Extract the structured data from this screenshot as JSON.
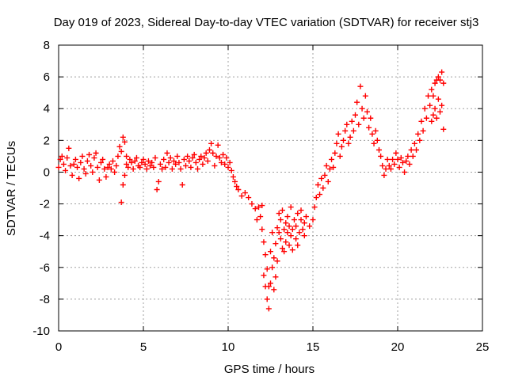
{
  "chart_data": {
    "type": "scatter",
    "title": "Day 019 of 2023, Sidereal Day-to-day VTEC variation (SDTVAR) for receiver stj3",
    "xlabel": "GPS time / hours",
    "ylabel": "SDTVAR / TECUs",
    "xlim": [
      0,
      25
    ],
    "ylim": [
      -10,
      8
    ],
    "xticks": [
      "0",
      "5",
      "10",
      "15",
      "20",
      "25"
    ],
    "yticks": [
      "-10",
      "-8",
      "-6",
      "-4",
      "-2",
      "0",
      "2",
      "4",
      "6",
      "8"
    ],
    "grid": true,
    "legend": "none",
    "marker": "plus",
    "color": "#ff0000",
    "series": [
      {
        "values": [
          [
            0.0,
            0.3
          ],
          [
            0.1,
            0.8
          ],
          [
            0.2,
            1.0
          ],
          [
            0.3,
            0.5
          ],
          [
            0.4,
            0.1
          ],
          [
            0.5,
            0.9
          ],
          [
            0.6,
            1.5
          ],
          [
            0.7,
            0.4
          ],
          [
            0.8,
            -0.2
          ],
          [
            0.9,
            0.5
          ],
          [
            1.0,
            0.8
          ],
          [
            1.1,
            0.3
          ],
          [
            1.2,
            -0.4
          ],
          [
            1.3,
            0.6
          ],
          [
            1.4,
            1.0
          ],
          [
            1.5,
            0.2
          ],
          [
            1.6,
            -0.1
          ],
          [
            1.7,
            0.7
          ],
          [
            1.8,
            1.1
          ],
          [
            1.9,
            0.4
          ],
          [
            2.0,
            0.0
          ],
          [
            2.1,
            0.9
          ],
          [
            2.2,
            1.2
          ],
          [
            2.3,
            0.3
          ],
          [
            2.4,
            -0.5
          ],
          [
            2.5,
            0.6
          ],
          [
            2.6,
            0.8
          ],
          [
            2.7,
            0.2
          ],
          [
            2.8,
            -0.3
          ],
          [
            2.9,
            0.3
          ],
          [
            3.0,
            0.5
          ],
          [
            3.1,
            0.2
          ],
          [
            3.2,
            0.7
          ],
          [
            3.3,
            0.0
          ],
          [
            3.4,
            0.4
          ],
          [
            3.5,
            1.0
          ],
          [
            3.6,
            1.6
          ],
          [
            3.7,
            -1.9
          ],
          [
            3.7,
            1.3
          ],
          [
            3.8,
            -0.8
          ],
          [
            3.8,
            2.2
          ],
          [
            3.9,
            -0.2
          ],
          [
            3.9,
            1.9
          ],
          [
            4.0,
            0.5
          ],
          [
            4.0,
            1.0
          ],
          [
            4.1,
            0.3
          ],
          [
            4.2,
            0.8
          ],
          [
            4.3,
            0.6
          ],
          [
            4.4,
            0.2
          ],
          [
            4.5,
            0.7
          ],
          [
            4.6,
            0.9
          ],
          [
            4.7,
            0.4
          ],
          [
            4.8,
            0.3
          ],
          [
            4.9,
            0.6
          ],
          [
            5.0,
            0.8
          ],
          [
            5.1,
            0.5
          ],
          [
            5.2,
            0.2
          ],
          [
            5.3,
            0.7
          ],
          [
            5.4,
            0.4
          ],
          [
            5.5,
            0.6
          ],
          [
            5.6,
            0.3
          ],
          [
            5.7,
            0.9
          ],
          [
            5.8,
            -1.1
          ],
          [
            5.9,
            -0.6
          ],
          [
            6.0,
            0.5
          ],
          [
            6.1,
            0.2
          ],
          [
            6.2,
            0.8
          ],
          [
            6.3,
            0.3
          ],
          [
            6.4,
            1.2
          ],
          [
            6.5,
            0.6
          ],
          [
            6.6,
            0.9
          ],
          [
            6.7,
            0.2
          ],
          [
            6.8,
            0.7
          ],
          [
            6.9,
            0.5
          ],
          [
            7.0,
            1.0
          ],
          [
            7.1,
            0.6
          ],
          [
            7.2,
            0.2
          ],
          [
            7.3,
            -0.8
          ],
          [
            7.4,
            0.8
          ],
          [
            7.5,
            0.4
          ],
          [
            7.6,
            1.0
          ],
          [
            7.7,
            0.7
          ],
          [
            7.8,
            0.3
          ],
          [
            7.9,
            0.9
          ],
          [
            8.0,
            1.1
          ],
          [
            8.1,
            0.6
          ],
          [
            8.2,
            0.2
          ],
          [
            8.3,
            0.8
          ],
          [
            8.4,
            1.0
          ],
          [
            8.5,
            0.5
          ],
          [
            8.6,
            0.9
          ],
          [
            8.7,
            1.2
          ],
          [
            8.8,
            0.7
          ],
          [
            8.9,
            1.4
          ],
          [
            9.0,
            1.8
          ],
          [
            9.1,
            1.2
          ],
          [
            9.2,
            0.4
          ],
          [
            9.3,
            1.0
          ],
          [
            9.4,
            1.7
          ],
          [
            9.5,
            0.9
          ],
          [
            9.6,
            0.6
          ],
          [
            9.7,
            1.1
          ],
          [
            9.8,
            0.5
          ],
          [
            9.9,
            0.9
          ],
          [
            10.0,
            0.3
          ],
          [
            10.1,
            0.6
          ],
          [
            10.2,
            0.1
          ],
          [
            10.3,
            -0.3
          ],
          [
            10.4,
            -0.6
          ],
          [
            10.5,
            -0.9
          ],
          [
            10.6,
            -1.1
          ],
          [
            10.8,
            -1.5
          ],
          [
            11.0,
            -1.3
          ],
          [
            11.2,
            -1.6
          ],
          [
            11.4,
            -2.0
          ],
          [
            11.6,
            -2.3
          ],
          [
            11.7,
            -3.0
          ],
          [
            11.8,
            -2.2
          ],
          [
            11.9,
            -2.8
          ],
          [
            12.0,
            -3.6
          ],
          [
            12.0,
            -2.1
          ],
          [
            12.1,
            -4.4
          ],
          [
            12.1,
            -6.5
          ],
          [
            12.2,
            -5.2
          ],
          [
            12.2,
            -7.2
          ],
          [
            12.3,
            -6.1
          ],
          [
            12.3,
            -8.0
          ],
          [
            12.4,
            -7.2
          ],
          [
            12.4,
            -8.6
          ],
          [
            12.5,
            -7.0
          ],
          [
            12.5,
            -5.0
          ],
          [
            12.6,
            -6.0
          ],
          [
            12.6,
            -3.8
          ],
          [
            12.7,
            -5.4
          ],
          [
            12.7,
            -7.4
          ],
          [
            12.8,
            -4.5
          ],
          [
            12.8,
            -6.6
          ],
          [
            12.9,
            -3.5
          ],
          [
            12.9,
            -5.6
          ],
          [
            13.0,
            -3.8
          ],
          [
            13.0,
            -2.6
          ],
          [
            13.1,
            -4.2
          ],
          [
            13.1,
            -3.0
          ],
          [
            13.2,
            -4.8
          ],
          [
            13.2,
            -2.4
          ],
          [
            13.3,
            -3.6
          ],
          [
            13.3,
            -5.0
          ],
          [
            13.4,
            -3.2
          ],
          [
            13.4,
            -4.4
          ],
          [
            13.5,
            -2.8
          ],
          [
            13.5,
            -3.8
          ],
          [
            13.6,
            -4.6
          ],
          [
            13.6,
            -3.4
          ],
          [
            13.7,
            -2.2
          ],
          [
            13.7,
            -4.0
          ],
          [
            13.8,
            -3.6
          ],
          [
            13.8,
            -4.9
          ],
          [
            13.9,
            -3.0
          ],
          [
            14.0,
            -4.2
          ],
          [
            14.0,
            -3.4
          ],
          [
            14.1,
            -2.6
          ],
          [
            14.1,
            -4.6
          ],
          [
            14.2,
            -3.8
          ],
          [
            14.3,
            -3.0
          ],
          [
            14.3,
            -2.4
          ],
          [
            14.4,
            -3.6
          ],
          [
            14.5,
            -3.2
          ],
          [
            14.5,
            -4.0
          ],
          [
            14.6,
            -2.8
          ],
          [
            14.8,
            -3.4
          ],
          [
            15.0,
            -3.0
          ],
          [
            15.1,
            -2.2
          ],
          [
            15.2,
            -1.6
          ],
          [
            15.3,
            -0.8
          ],
          [
            15.4,
            -1.4
          ],
          [
            15.5,
            -0.4
          ],
          [
            15.6,
            -1.0
          ],
          [
            15.7,
            -0.2
          ],
          [
            15.8,
            0.4
          ],
          [
            15.9,
            -0.6
          ],
          [
            16.0,
            0.2
          ],
          [
            16.1,
            0.8
          ],
          [
            16.2,
            0.3
          ],
          [
            16.3,
            1.2
          ],
          [
            16.4,
            1.8
          ],
          [
            16.5,
            2.4
          ],
          [
            16.6,
            1.0
          ],
          [
            16.7,
            1.6
          ],
          [
            16.8,
            2.0
          ],
          [
            16.9,
            2.6
          ],
          [
            17.0,
            3.0
          ],
          [
            17.1,
            1.8
          ],
          [
            17.2,
            2.2
          ],
          [
            17.3,
            3.2
          ],
          [
            17.4,
            2.6
          ],
          [
            17.5,
            3.6
          ],
          [
            17.6,
            4.4
          ],
          [
            17.7,
            3.0
          ],
          [
            17.8,
            5.4
          ],
          [
            17.9,
            4.0
          ],
          [
            18.0,
            3.4
          ],
          [
            18.1,
            4.8
          ],
          [
            18.2,
            3.8
          ],
          [
            18.3,
            2.8
          ],
          [
            18.4,
            3.4
          ],
          [
            18.5,
            2.4
          ],
          [
            18.6,
            1.8
          ],
          [
            18.7,
            2.6
          ],
          [
            18.8,
            2.0
          ],
          [
            18.9,
            1.4
          ],
          [
            19.0,
            1.0
          ],
          [
            19.1,
            0.4
          ],
          [
            19.2,
            -0.2
          ],
          [
            19.3,
            0.2
          ],
          [
            19.4,
            0.8
          ],
          [
            19.5,
            0.4
          ],
          [
            19.6,
            0.2
          ],
          [
            19.7,
            0.8
          ],
          [
            19.8,
            0.5
          ],
          [
            19.9,
            1.2
          ],
          [
            20.0,
            0.8
          ],
          [
            20.1,
            0.3
          ],
          [
            20.2,
            0.9
          ],
          [
            20.3,
            0.6
          ],
          [
            20.4,
            0.0
          ],
          [
            20.5,
            0.7
          ],
          [
            20.6,
            1.0
          ],
          [
            20.7,
            0.5
          ],
          [
            20.8,
            1.4
          ],
          [
            20.9,
            1.0
          ],
          [
            21.0,
            1.8
          ],
          [
            21.1,
            1.4
          ],
          [
            21.2,
            2.4
          ],
          [
            21.3,
            2.0
          ],
          [
            21.4,
            3.2
          ],
          [
            21.5,
            2.6
          ],
          [
            21.6,
            4.0
          ],
          [
            21.7,
            3.4
          ],
          [
            21.8,
            4.8
          ],
          [
            21.9,
            4.2
          ],
          [
            22.0,
            5.2
          ],
          [
            22.0,
            3.2
          ],
          [
            22.1,
            4.8
          ],
          [
            22.1,
            3.6
          ],
          [
            22.2,
            5.6
          ],
          [
            22.2,
            4.0
          ],
          [
            22.3,
            5.8
          ],
          [
            22.3,
            3.4
          ],
          [
            22.4,
            6.0
          ],
          [
            22.4,
            4.6
          ],
          [
            22.5,
            5.8
          ],
          [
            22.5,
            3.8
          ],
          [
            22.6,
            6.3
          ],
          [
            22.6,
            4.2
          ],
          [
            22.7,
            5.6
          ],
          [
            22.7,
            2.7
          ]
        ]
      }
    ]
  }
}
